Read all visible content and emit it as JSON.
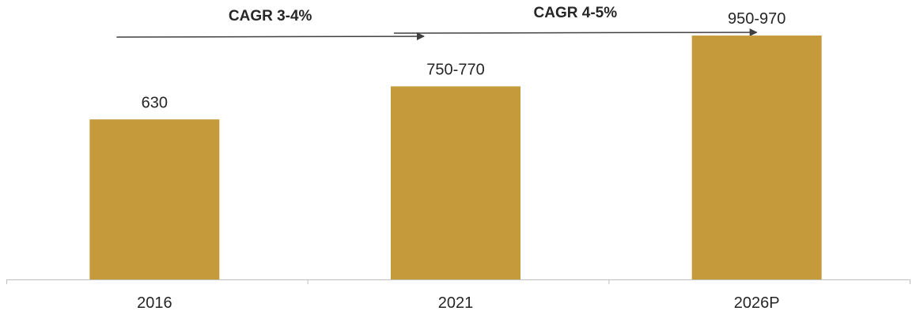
{
  "chart_data": {
    "type": "bar",
    "categories": [
      "2016",
      "2021",
      "2026P"
    ],
    "values": [
      630,
      760,
      960
    ],
    "value_labels": [
      "630",
      "750-770",
      "950-970"
    ],
    "ylim": [
      0,
      1100
    ],
    "grid": false,
    "bar_color": "#C59A3A",
    "annotations": [
      {
        "text": "CAGR 3-4%",
        "from": "2016",
        "to": "2021"
      },
      {
        "text": "CAGR 4-5%",
        "from": "2021",
        "to": "2026P"
      }
    ]
  }
}
